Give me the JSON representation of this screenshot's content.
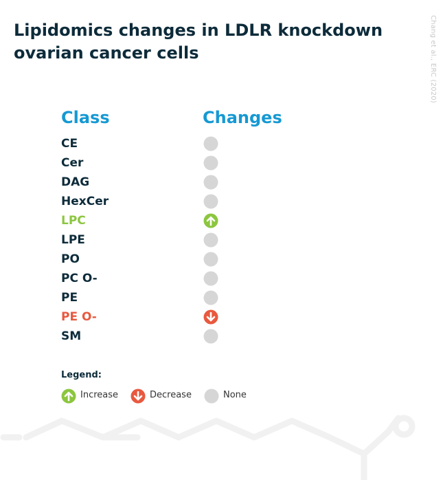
{
  "title": "Lipidomics changes in LDLR knockdown ovarian cancer cells",
  "credit": "Chang et al., ERC (2020)",
  "headers": {
    "class": "Class",
    "changes": "Changes"
  },
  "colors": {
    "header": "#1699d3",
    "text": "#0d2b3a",
    "increase": "#8cc63f",
    "decrease": "#e8593f",
    "none": "#d6d6d6"
  },
  "rows": [
    {
      "label": "CE",
      "change": "none"
    },
    {
      "label": "Cer",
      "change": "none"
    },
    {
      "label": "DAG",
      "change": "none"
    },
    {
      "label": "HexCer",
      "change": "none"
    },
    {
      "label": "LPC",
      "change": "increase"
    },
    {
      "label": "LPE",
      "change": "none"
    },
    {
      "label": "PO",
      "change": "none"
    },
    {
      "label": "PC O-",
      "change": "none"
    },
    {
      "label": "PE",
      "change": "none"
    },
    {
      "label": "PE O-",
      "change": "decrease"
    },
    {
      "label": "SM",
      "change": "none"
    }
  ],
  "legend": {
    "title": "Legend:",
    "items": [
      {
        "kind": "increase",
        "label": "Increase",
        "icon": "arrow-up-circle-icon"
      },
      {
        "kind": "decrease",
        "label": "Decrease",
        "icon": "arrow-down-circle-icon"
      },
      {
        "kind": "none",
        "label": "None",
        "icon": "grey-circle-icon"
      }
    ]
  }
}
